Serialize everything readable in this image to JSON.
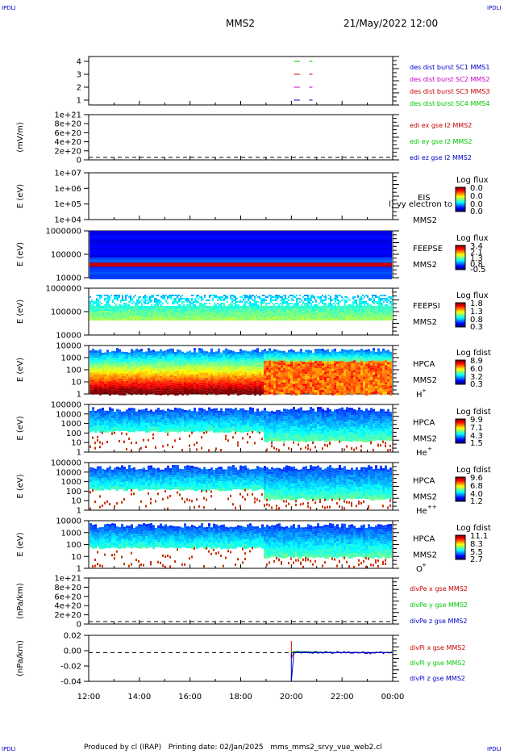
{
  "header": {
    "corner_label": "IPDLI",
    "spacecraft": "MMS2",
    "datetime": "21/May/2022 12:00"
  },
  "footer": {
    "text": "Produced by cl (IRAP)   Printing date: 02/Jan/2025   mms_mms2_srvy_vue_web2.cl"
  },
  "colors": {
    "blue": "#0000c8",
    "magenta": "#c800c8",
    "red": "#c80000",
    "green": "#00c800"
  },
  "chart_data": [
    {
      "type": "line",
      "panel": "availability",
      "y_ticks": [
        "4",
        "3",
        "2",
        "1"
      ],
      "ylim": [
        0.5,
        4.5
      ],
      "series": [
        {
          "name": "des dist burst SC1 MMS1",
          "color": "#0000c8",
          "level": 1,
          "segments": [
            [
              "20:06",
              "20:20"
            ],
            [
              "20:42",
              "20:50"
            ]
          ]
        },
        {
          "name": "des dist burst SC2 MMS2",
          "color": "#c800c8",
          "level": 2,
          "segments": [
            [
              "20:06",
              "20:20"
            ],
            [
              "20:42",
              "20:50"
            ]
          ]
        },
        {
          "name": "des dist burst SC3 MMS3",
          "color": "#c80000",
          "level": 3,
          "segments": [
            [
              "20:06",
              "20:20"
            ],
            [
              "20:42",
              "20:50"
            ]
          ]
        },
        {
          "name": "des dist burst SC4 MMS4",
          "color": "#00c800",
          "level": 4,
          "segments": [
            [
              "20:06",
              "20:20"
            ],
            [
              "20:42",
              "20:50"
            ]
          ]
        }
      ]
    },
    {
      "type": "line",
      "panel": "edi-efield",
      "ylabel": "(mV/m)",
      "y_ticks": [
        "1e+21",
        "8e+20",
        "6e+20",
        "4e+20",
        "2e+20",
        "0"
      ],
      "ylim": [
        0,
        1e+21
      ],
      "series": [
        {
          "name": "edi ex gse l2 MMS2",
          "color": "#c80000",
          "values": []
        },
        {
          "name": "edi ey gse l2 MMS2",
          "color": "#00c800",
          "values": []
        },
        {
          "name": "edi ez gse l2 MMS2",
          "color": "#0000c8",
          "values": []
        }
      ]
    },
    {
      "type": "heatmap",
      "panel": "eis",
      "ylabel": "E (eV)",
      "y_ticks": [
        "1e+07",
        "1e+06",
        "1e+05",
        "1e+04"
      ],
      "ylim": [
        10000,
        10000000
      ],
      "label": [
        "EIS",
        "MMS2"
      ],
      "overlay_text": "l) vy electron to",
      "colorbar": {
        "title": "Log flux",
        "ticks": [
          "0.0",
          "0.0",
          "0.0",
          "0.0"
        ]
      }
    },
    {
      "type": "heatmap",
      "panel": "feeps-electron",
      "ylabel": "E (eV)",
      "y_ticks": [
        "1000000",
        "100000",
        "10000"
      ],
      "ylim": [
        10000,
        1000000
      ],
      "label": [
        "FEEPSE",
        "MMS2"
      ],
      "colorbar": {
        "title": "Log flux",
        "ticks": [
          "3.4",
          "2.1",
          "1.3",
          "0.8",
          "-0.5"
        ]
      }
    },
    {
      "type": "heatmap",
      "panel": "feeps-ion",
      "ylabel": "E (eV)",
      "y_ticks": [
        "1000000",
        "100000",
        "10000"
      ],
      "ylim": [
        10000,
        1000000
      ],
      "label": [
        "FEEPSI",
        "MMS2"
      ],
      "colorbar": {
        "title": "Log flux",
        "ticks": [
          "1.8",
          "1.3",
          "0.8",
          "0.3"
        ]
      }
    },
    {
      "type": "heatmap",
      "panel": "hpca-h",
      "ylabel": "E (eV)",
      "y_ticks": [
        "10000",
        "1000",
        "100",
        "10",
        "1"
      ],
      "ylim": [
        1,
        30000
      ],
      "label": [
        "HPCA",
        "MMS2",
        "H",
        "+"
      ],
      "colorbar": {
        "title": "Log fdist",
        "ticks": [
          "8.9",
          "6.0",
          "3.2",
          "0.3"
        ]
      }
    },
    {
      "type": "heatmap",
      "panel": "hpca-he",
      "ylabel": "E (eV)",
      "y_ticks": [
        "100000",
        "10000",
        "1000",
        "100",
        "10",
        "1"
      ],
      "ylim": [
        1,
        100000
      ],
      "label": [
        "HPCA",
        "MMS2",
        "He",
        "+"
      ],
      "colorbar": {
        "title": "Log fdist",
        "ticks": [
          "9.9",
          "7.1",
          "4.3",
          "1.5"
        ]
      }
    },
    {
      "type": "heatmap",
      "panel": "hpca-he2",
      "ylabel": "E (eV)",
      "y_ticks": [
        "100000",
        "10000",
        "1000",
        "100",
        "10",
        "1"
      ],
      "ylim": [
        1,
        100000
      ],
      "label": [
        "HPCA",
        "MMS2",
        "He",
        "++"
      ],
      "colorbar": {
        "title": "Log fdist",
        "ticks": [
          "9.6",
          "6.8",
          "4.0",
          "1.2"
        ]
      }
    },
    {
      "type": "heatmap",
      "panel": "hpca-o",
      "ylabel": "E (eV)",
      "y_ticks": [
        "10000",
        "1000",
        "100",
        "10",
        "1"
      ],
      "ylim": [
        1,
        30000
      ],
      "label": [
        "HPCA",
        "MMS2",
        "O",
        "+"
      ],
      "colorbar": {
        "title": "Log fdist",
        "ticks": [
          "11.1",
          "8.3",
          "5.5",
          "2.7"
        ]
      }
    },
    {
      "type": "line",
      "panel": "divpe",
      "ylabel": "(nPa/km)",
      "y_ticks": [
        "1e+21",
        "8e+20",
        "6e+20",
        "4e+20",
        "2e+20",
        "0"
      ],
      "ylim": [
        0,
        1e+21
      ],
      "series": [
        {
          "name": "divPe x gse MMS2",
          "color": "#c80000",
          "values": []
        },
        {
          "name": "divPe y gse MMS2",
          "color": "#00c800",
          "values": []
        },
        {
          "name": "divPe z gse MMS2",
          "color": "#0000c8",
          "values": []
        }
      ]
    },
    {
      "type": "line",
      "panel": "divpi",
      "ylabel": "(nPa/km)",
      "y_ticks": [
        "0.02",
        "0.00",
        "-0.02",
        "-0.04"
      ],
      "ylim": [
        -0.05,
        0.03
      ],
      "series": [
        {
          "name": "divPi x gse MMS2",
          "color": "#c80000",
          "x": [
            "20:00",
            "20:00",
            "20:06",
            "22:00",
            "24:00"
          ],
          "values": [
            0.02,
            -0.01,
            0.001,
            0.0,
            0.0
          ]
        },
        {
          "name": "divPi y gse MMS2",
          "color": "#00c800",
          "x": [
            "20:00",
            "20:06",
            "22:00",
            "24:00"
          ],
          "values": [
            0.0,
            0.002,
            0.0,
            0.0
          ]
        },
        {
          "name": "divPi z gse MMS2",
          "color": "#0000c8",
          "x": [
            "20:00",
            "20:00",
            "20:06",
            "22:00",
            "24:00"
          ],
          "values": [
            0.0,
            -0.05,
            0.0,
            0.0,
            0.0
          ]
        }
      ]
    }
  ],
  "x_axis": {
    "ticks": [
      "12:00",
      "14:00",
      "16:00",
      "18:00",
      "20:00",
      "22:00",
      "00:00"
    ]
  }
}
